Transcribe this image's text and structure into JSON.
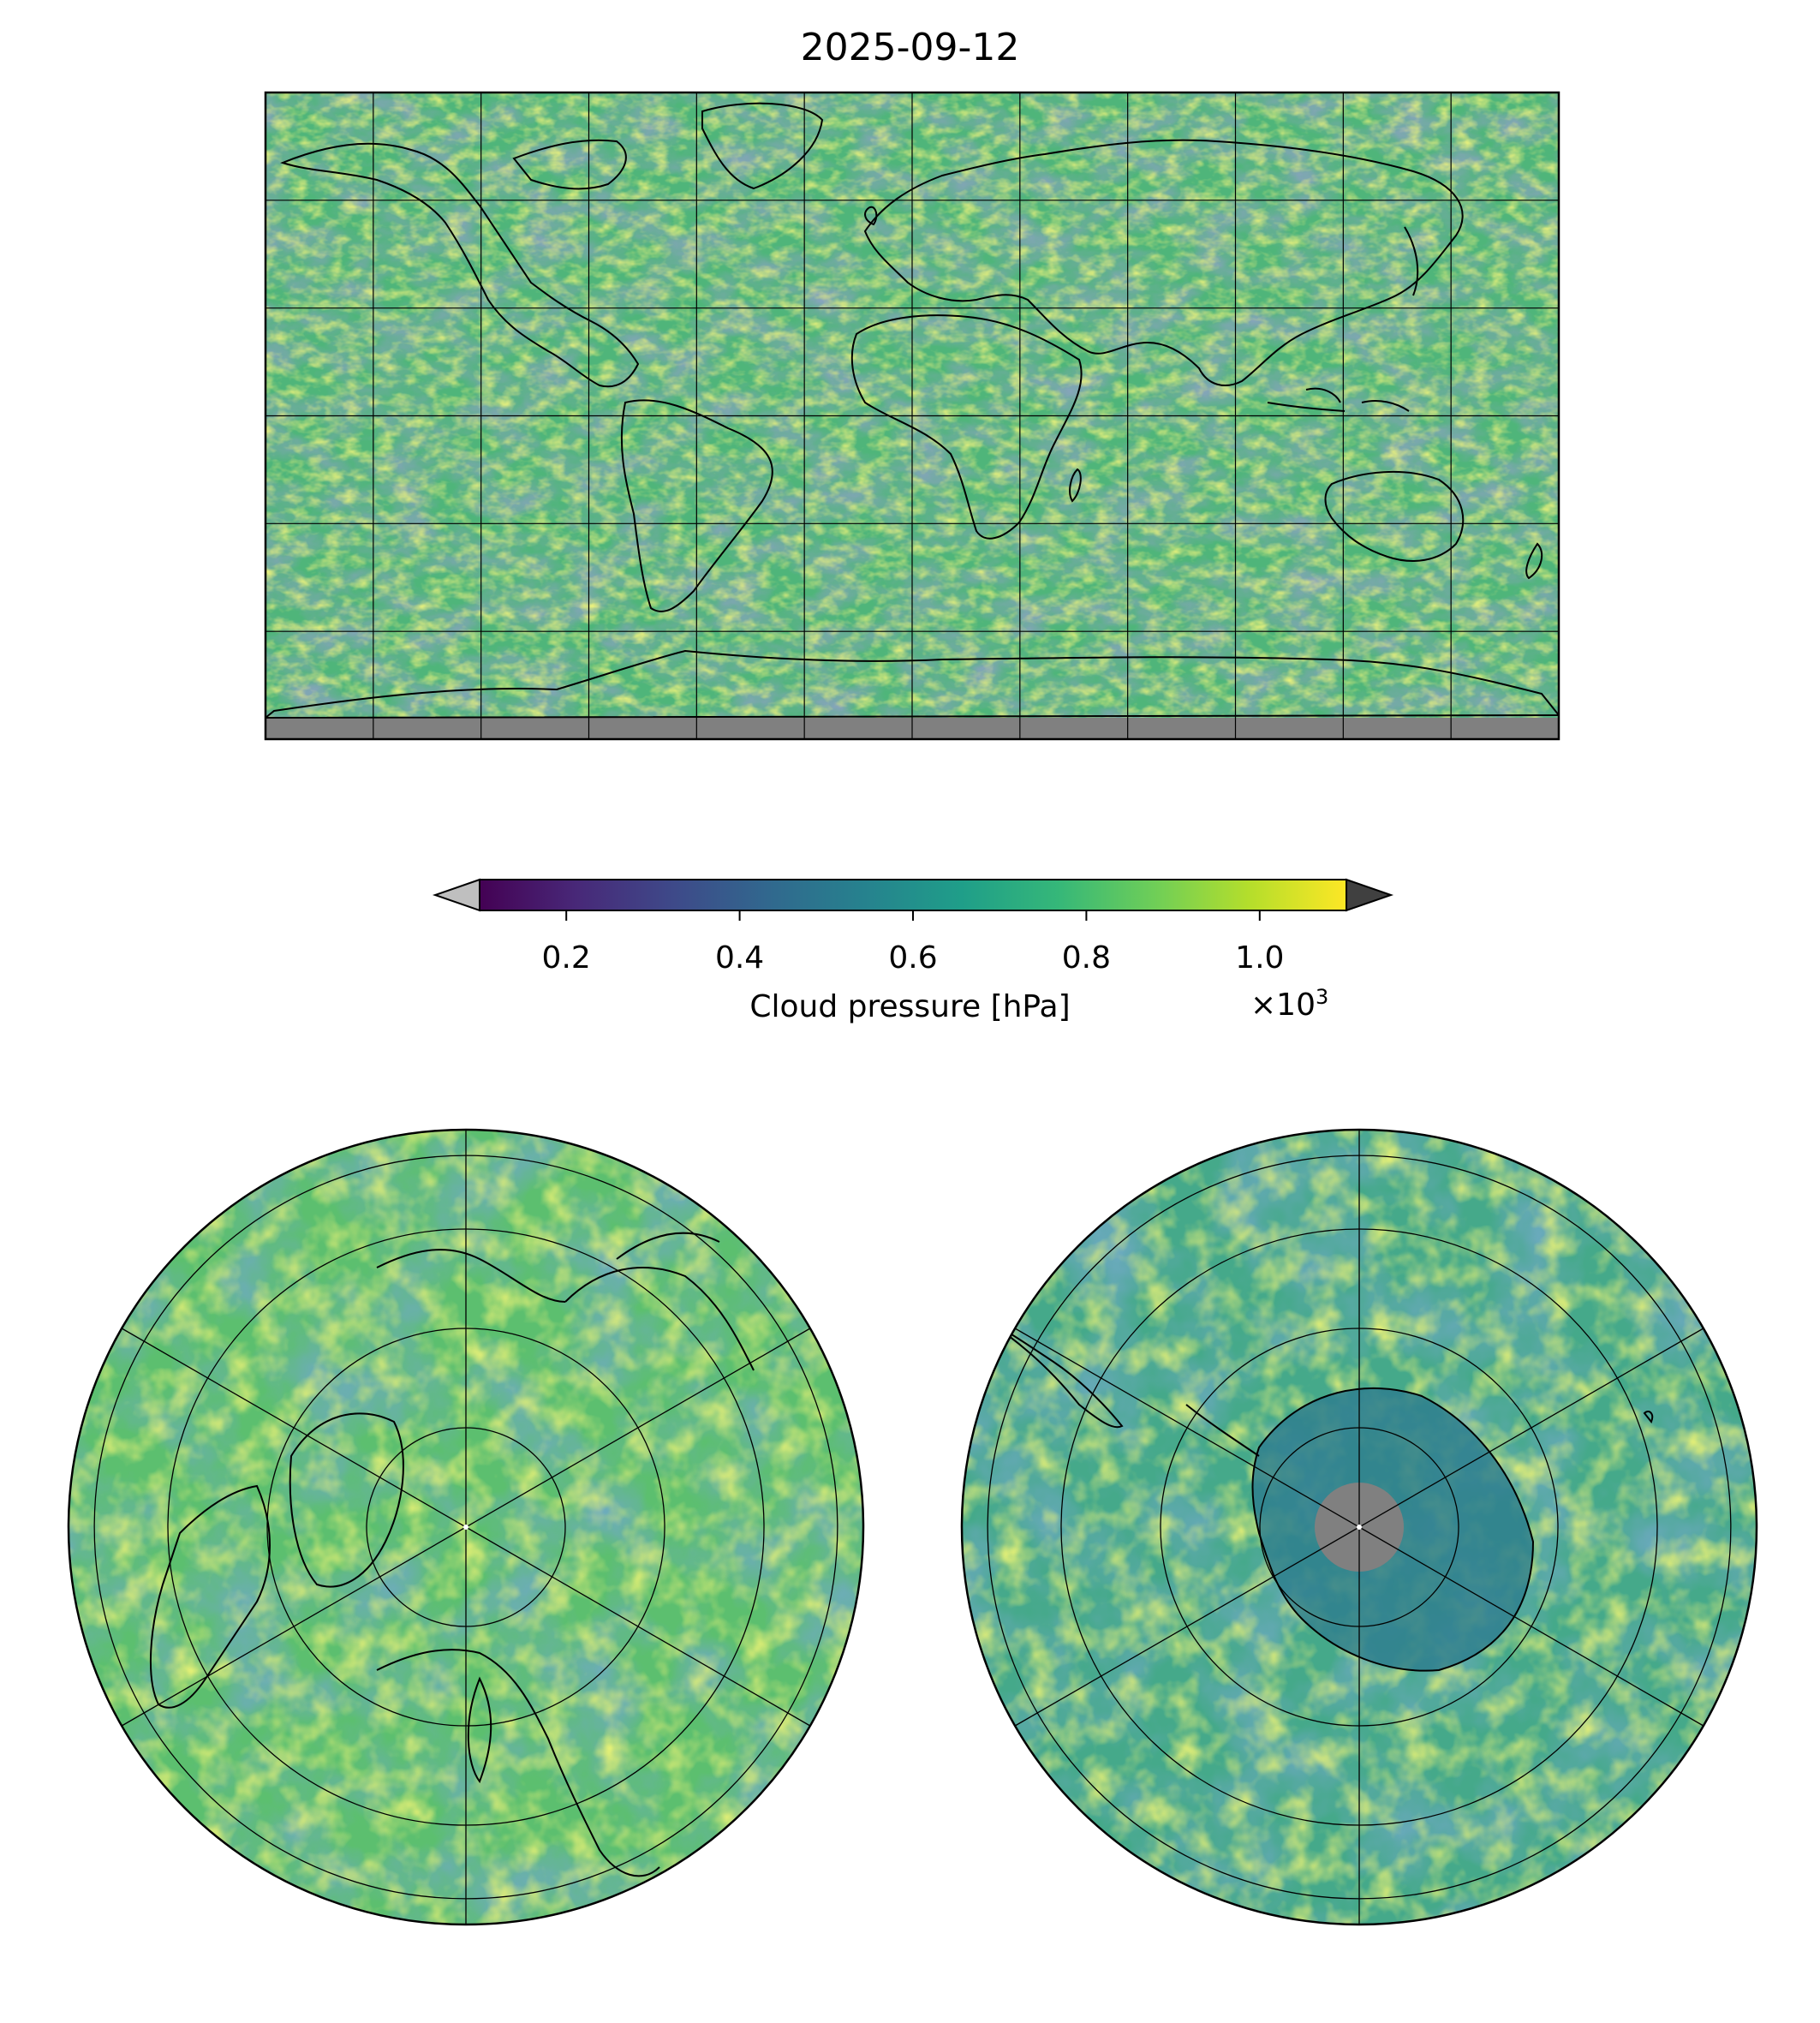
{
  "title": "2025-09-12",
  "colorbar": {
    "label": "Cloud pressure [hPa]",
    "multiplier_text": "×10",
    "multiplier_exponent": "3",
    "ticks": [
      "0.2",
      "0.4",
      "0.6",
      "0.8",
      "1.0"
    ],
    "tick_values": [
      0.2,
      0.4,
      0.6,
      0.8,
      1.0
    ],
    "range": [
      0.1,
      1.1
    ],
    "extend": "both",
    "under_color": "#bfbfbf",
    "over_color": "#404040",
    "colormap": "viridis",
    "colormap_stops": [
      "#440154",
      "#482878",
      "#3e4989",
      "#31688e",
      "#26828e",
      "#1f9e89",
      "#35b779",
      "#6ece58",
      "#b5de2b",
      "#fde725"
    ]
  },
  "panels": [
    {
      "id": "global",
      "projection": "equirectangular",
      "gridlines": true,
      "coastlines": true,
      "missing_color": "#808080"
    },
    {
      "id": "north-polar",
      "projection": "north polar stereographic",
      "gridlines": true,
      "coastlines": true
    },
    {
      "id": "south-polar",
      "projection": "south polar stereographic",
      "gridlines": true,
      "coastlines": true,
      "missing_color": "#808080"
    }
  ]
}
